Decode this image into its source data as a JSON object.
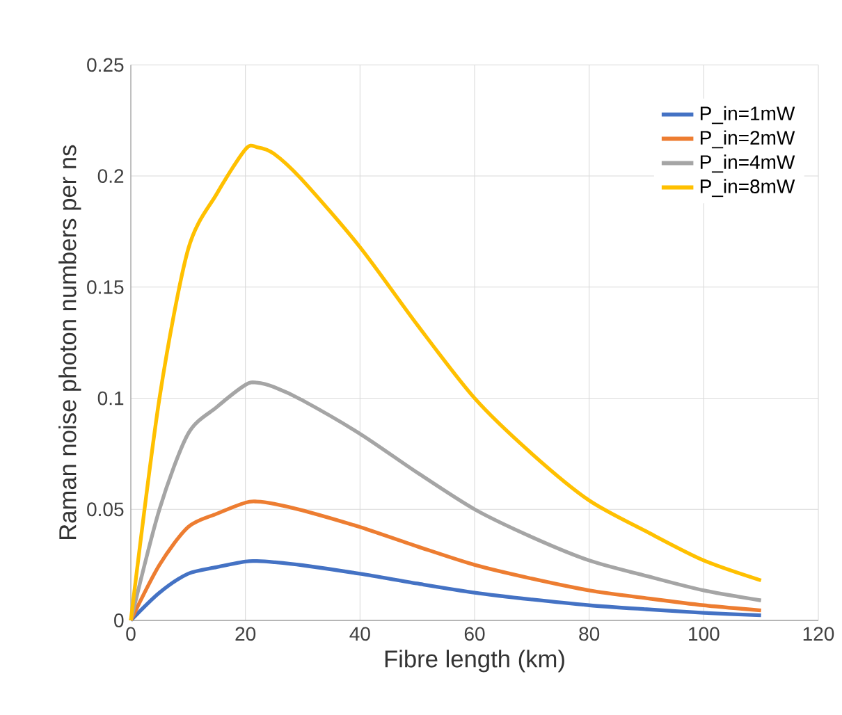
{
  "chart_data": {
    "type": "line",
    "xlabel": "Fibre length (km)",
    "ylabel": "Raman noise photon numbers per ns",
    "x": [
      0,
      5,
      10,
      15,
      20,
      22,
      25,
      30,
      40,
      50,
      60,
      70,
      80,
      90,
      100,
      110
    ],
    "series": [
      {
        "name": "P_in=1mW",
        "color": "#4472c4",
        "values": [
          0,
          0.0125,
          0.021,
          0.024,
          0.0265,
          0.0267,
          0.0262,
          0.0248,
          0.021,
          0.0166,
          0.0125,
          0.0094,
          0.0068,
          0.005,
          0.0034,
          0.0023
        ]
      },
      {
        "name": "P_in=2mW",
        "color": "#ed7d31",
        "values": [
          0,
          0.025,
          0.042,
          0.048,
          0.053,
          0.0535,
          0.0525,
          0.0495,
          0.042,
          0.0333,
          0.025,
          0.0188,
          0.0135,
          0.01,
          0.0068,
          0.0045
        ]
      },
      {
        "name": "P_in=4mW",
        "color": "#a5a5a5",
        "values": [
          0,
          0.05,
          0.084,
          0.096,
          0.106,
          0.107,
          0.105,
          0.099,
          0.084,
          0.0665,
          0.05,
          0.0375,
          0.027,
          0.02,
          0.0135,
          0.009
        ]
      },
      {
        "name": "P_in=8mW",
        "color": "#ffc000",
        "values": [
          0,
          0.1,
          0.167,
          0.192,
          0.212,
          0.213,
          0.21,
          0.198,
          0.168,
          0.133,
          0.1,
          0.075,
          0.054,
          0.04,
          0.027,
          0.018
        ]
      }
    ],
    "xlim": [
      0,
      120
    ],
    "xticks": [
      0,
      20,
      40,
      60,
      80,
      100,
      120
    ],
    "ylim": [
      0,
      0.25
    ],
    "yticks": [
      0,
      {
        "value": 0.05,
        "label": "0.05"
      },
      {
        "value": 0.1,
        "label": "0.1"
      },
      {
        "value": 0.15,
        "label": "0.15"
      },
      {
        "value": 0.2,
        "label": "0.2"
      },
      {
        "value": 0.25,
        "label": "0.25"
      }
    ],
    "grid": true,
    "legend": "top right",
    "marker": "none",
    "line_style": "solid"
  }
}
